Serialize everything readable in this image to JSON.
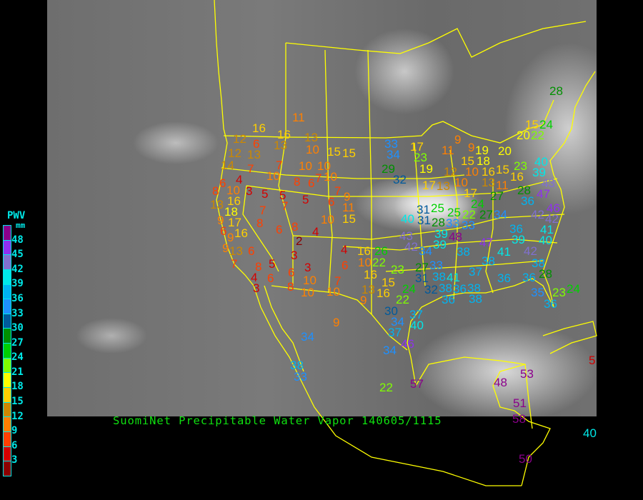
{
  "title": "SuomiNet Precipitable Water Vapor 140605/1115",
  "legend": {
    "title": "PWV",
    "unit": "mm",
    "ticks": [
      "48",
      "45",
      "42",
      "39",
      "36",
      "33",
      "30",
      "27",
      "24",
      "21",
      "18",
      "15",
      "12",
      "9",
      "6",
      "3"
    ],
    "colors_top_to_bottom": [
      "#8b008b",
      "#9030f0",
      "#8070d0",
      "#00e8e8",
      "#00b4f0",
      "#1e90ff",
      "#005a9c",
      "#009000",
      "#00d000",
      "#80ff00",
      "#ffff00",
      "#ffd000",
      "#cc8800",
      "#ff8000",
      "#ff4000",
      "#d40000",
      "#8b0000"
    ]
  },
  "colors": {
    "coastline": "#ffff00",
    "title": "#10e010",
    "legend_text": "#00e8e8"
  },
  "stations": [
    11,
    16,
    16,
    13,
    12,
    6,
    13,
    10,
    15,
    15,
    12,
    13,
    14,
    7,
    7,
    10,
    10,
    10,
    8,
    6,
    7,
    10,
    6,
    4,
    8,
    10,
    3,
    5,
    5,
    5,
    7,
    9,
    6,
    13,
    16,
    11,
    18,
    7,
    7,
    9,
    17,
    8,
    6,
    16,
    10,
    15,
    6,
    8,
    4,
    9,
    2,
    9,
    13,
    6,
    4,
    3,
    16,
    26,
    7,
    5,
    8,
    3,
    6,
    6,
    10,
    22,
    4,
    6,
    10,
    16,
    3,
    8,
    10,
    10,
    7,
    13,
    16,
    15,
    9,
    33,
    34,
    17,
    23,
    11,
    9,
    9,
    19,
    15,
    18,
    19,
    29,
    32,
    12,
    10,
    16,
    15,
    23,
    40,
    39,
    43,
    17,
    13,
    10,
    13,
    16,
    11,
    17,
    27,
    28,
    36,
    47,
    31,
    25,
    25,
    22,
    24,
    27,
    34,
    42,
    46,
    42,
    40,
    31,
    28,
    33,
    33,
    41,
    36,
    39,
    48,
    43,
    42,
    39,
    39,
    40,
    47,
    34,
    38,
    41,
    42,
    27,
    23,
    33,
    38,
    37,
    38,
    31,
    38,
    41,
    32,
    38,
    36,
    36,
    36,
    28,
    35,
    24,
    22,
    38,
    38,
    36,
    36,
    23,
    24,
    30,
    37,
    34,
    40,
    37,
    46,
    34,
    9,
    34,
    38,
    33,
    22,
    57,
    48,
    53,
    51,
    58,
    40,
    50,
    5,
    28,
    15,
    24,
    20,
    22,
    20
  ]
}
